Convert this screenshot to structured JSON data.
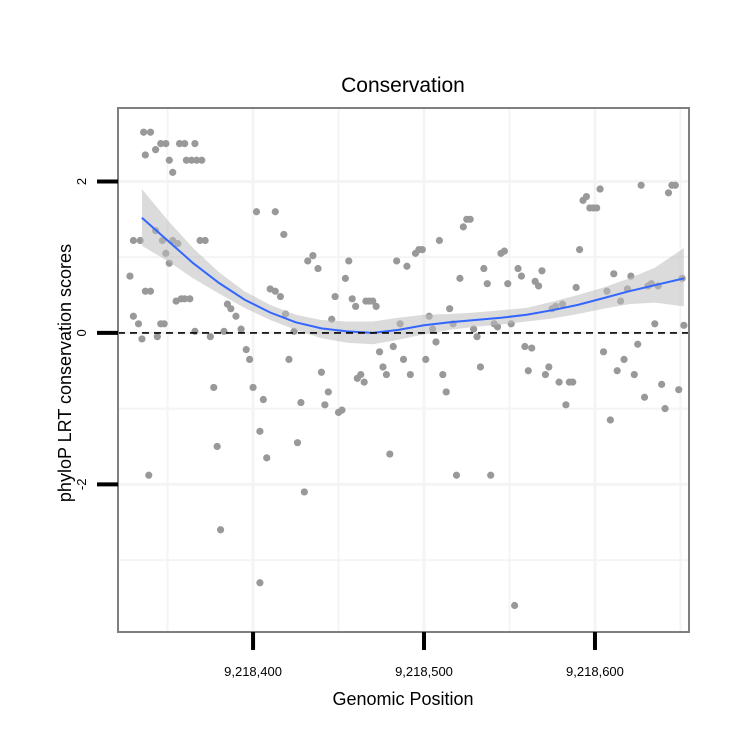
{
  "chart_data": {
    "type": "scatter",
    "title": "Conservation",
    "xlabel": "Genomic Position",
    "ylabel": "phyloP LRT conservation scores",
    "xlim": [
      9218321,
      9218655
    ],
    "ylim": [
      -3.95,
      2.97
    ],
    "x_ticks": [
      {
        "value": 9218400,
        "label": "9,218,400"
      },
      {
        "value": 9218500,
        "label": "9,218,500"
      },
      {
        "value": 9218600,
        "label": "9,218,600"
      }
    ],
    "y_ticks": [
      {
        "value": 2,
        "label": "2"
      },
      {
        "value": 0,
        "label": "0"
      },
      {
        "value": -2,
        "label": "-2"
      }
    ],
    "x_minor_grid": [
      9218350,
      9218450,
      9218550,
      9218650
    ],
    "y_minor_grid": [
      1,
      -1,
      -3
    ],
    "reference_line": {
      "y": 0,
      "style": "dashed",
      "color": "#000000"
    },
    "colors": {
      "points": "#999999",
      "smooth": "#3366ff",
      "ribbon": "#bdbdbd",
      "panel_border": "#7f7f7f",
      "grid": "#f4f4f4"
    },
    "series": [
      {
        "name": "scores",
        "points": [
          [
            9218336,
            2.65
          ],
          [
            9218340,
            2.65
          ],
          [
            9218337,
            2.35
          ],
          [
            9218343,
            2.42
          ],
          [
            9218346,
            2.5
          ],
          [
            9218349,
            2.5
          ],
          [
            9218351,
            2.28
          ],
          [
            9218353,
            2.12
          ],
          [
            9218357,
            2.5
          ],
          [
            9218360,
            2.5
          ],
          [
            9218366,
            2.5
          ],
          [
            9218361,
            2.28
          ],
          [
            9218364,
            2.28
          ],
          [
            9218367,
            2.28
          ],
          [
            9218370,
            2.28
          ],
          [
            9218328,
            0.75
          ],
          [
            9218330,
            0.22
          ],
          [
            9218333,
            0.12
          ],
          [
            9218335,
            -0.08
          ],
          [
            9218330,
            1.22
          ],
          [
            9218334,
            1.22
          ],
          [
            9218337,
            0.55
          ],
          [
            9218340,
            0.55
          ],
          [
            9218343,
            1.35
          ],
          [
            9218347,
            1.22
          ],
          [
            9218349,
            1.05
          ],
          [
            9218351,
            0.92
          ],
          [
            9218355,
            0.42
          ],
          [
            9218346,
            0.12
          ],
          [
            9218348,
            0.12
          ],
          [
            9218344,
            -0.05
          ],
          [
            9218339,
            -1.88
          ],
          [
            9218356,
            1.18
          ],
          [
            9218358,
            0.45
          ],
          [
            9218360,
            0.45
          ],
          [
            9218363,
            0.45
          ],
          [
            9218353,
            1.22
          ],
          [
            9218366,
            0.02
          ],
          [
            9218369,
            1.22
          ],
          [
            9218372,
            1.22
          ],
          [
            9218375,
            -0.05
          ],
          [
            9218377,
            -0.72
          ],
          [
            9218379,
            -1.5
          ],
          [
            9218381,
            -2.6
          ],
          [
            9218383,
            0.02
          ],
          [
            9218385,
            0.38
          ],
          [
            9218387,
            0.32
          ],
          [
            9218390,
            0.22
          ],
          [
            9218393,
            0.05
          ],
          [
            9218396,
            -0.22
          ],
          [
            9218398,
            -0.35
          ],
          [
            9218400,
            -0.72
          ],
          [
            9218402,
            1.6
          ],
          [
            9218406,
            -0.88
          ],
          [
            9218404,
            -1.3
          ],
          [
            9218408,
            -1.65
          ],
          [
            9218404,
            -3.3
          ],
          [
            9218410,
            0.58
          ],
          [
            9218413,
            0.55
          ],
          [
            9218416,
            0.48
          ],
          [
            9218413,
            1.6
          ],
          [
            9218419,
            0.25
          ],
          [
            9218421,
            -0.35
          ],
          [
            9218418,
            1.3
          ],
          [
            9218424,
            0.02
          ],
          [
            9218426,
            -1.45
          ],
          [
            9218428,
            -0.92
          ],
          [
            9218430,
            -2.1
          ],
          [
            9218432,
            0.95
          ],
          [
            9218435,
            1.02
          ],
          [
            9218438,
            0.85
          ],
          [
            9218440,
            -0.52
          ],
          [
            9218442,
            -0.95
          ],
          [
            9218444,
            -0.78
          ],
          [
            9218446,
            0.18
          ],
          [
            9218448,
            0.48
          ],
          [
            9218450,
            -1.05
          ],
          [
            9218452,
            -1.02
          ],
          [
            9218454,
            0.72
          ],
          [
            9218456,
            0.95
          ],
          [
            9218458,
            0.45
          ],
          [
            9218460,
            0.35
          ],
          [
            9218461,
            -0.6
          ],
          [
            9218463,
            -0.55
          ],
          [
            9218465,
            -0.65
          ],
          [
            9218466,
            0.42
          ],
          [
            9218468,
            0.42
          ],
          [
            9218470,
            0.42
          ],
          [
            9218472,
            0.35
          ],
          [
            9218474,
            -0.25
          ],
          [
            9218476,
            -0.45
          ],
          [
            9218478,
            -0.55
          ],
          [
            9218480,
            -1.6
          ],
          [
            9218482,
            -0.18
          ],
          [
            9218484,
            0.95
          ],
          [
            9218486,
            0.12
          ],
          [
            9218488,
            -0.35
          ],
          [
            9218490,
            0.88
          ],
          [
            9218492,
            -0.55
          ],
          [
            9218495,
            1.05
          ],
          [
            9218497,
            1.1
          ],
          [
            9218499,
            1.1
          ],
          [
            9218501,
            -0.35
          ],
          [
            9218503,
            0.22
          ],
          [
            9218505,
            0.05
          ],
          [
            9218507,
            -0.12
          ],
          [
            9218509,
            1.22
          ],
          [
            9218511,
            -0.55
          ],
          [
            9218513,
            -0.78
          ],
          [
            9218515,
            0.32
          ],
          [
            9218517,
            0.12
          ],
          [
            9218519,
            -1.88
          ],
          [
            9218521,
            0.72
          ],
          [
            9218523,
            1.4
          ],
          [
            9218525,
            1.5
          ],
          [
            9218527,
            1.5
          ],
          [
            9218529,
            0.05
          ],
          [
            9218531,
            -0.05
          ],
          [
            9218533,
            -0.45
          ],
          [
            9218535,
            0.85
          ],
          [
            9218537,
            0.65
          ],
          [
            9218539,
            -1.88
          ],
          [
            9218541,
            0.12
          ],
          [
            9218543,
            0.08
          ],
          [
            9218545,
            1.05
          ],
          [
            9218547,
            1.08
          ],
          [
            9218549,
            0.65
          ],
          [
            9218551,
            0.12
          ],
          [
            9218553,
            -3.6
          ],
          [
            9218555,
            0.85
          ],
          [
            9218557,
            0.75
          ],
          [
            9218559,
            -0.18
          ],
          [
            9218561,
            -0.5
          ],
          [
            9218563,
            -0.2
          ],
          [
            9218565,
            0.68
          ],
          [
            9218567,
            0.62
          ],
          [
            9218569,
            0.82
          ],
          [
            9218571,
            -0.55
          ],
          [
            9218573,
            -0.45
          ],
          [
            9218575,
            0.32
          ],
          [
            9218577,
            0.35
          ],
          [
            9218579,
            -0.65
          ],
          [
            9218581,
            0.38
          ],
          [
            9218583,
            -0.95
          ],
          [
            9218585,
            -0.65
          ],
          [
            9218587,
            -0.65
          ],
          [
            9218589,
            0.6
          ],
          [
            9218591,
            1.1
          ],
          [
            9218593,
            1.75
          ],
          [
            9218595,
            1.8
          ],
          [
            9218597,
            1.65
          ],
          [
            9218599,
            1.65
          ],
          [
            9218601,
            1.65
          ],
          [
            9218603,
            1.9
          ],
          [
            9218605,
            -0.25
          ],
          [
            9218607,
            0.55
          ],
          [
            9218609,
            -1.15
          ],
          [
            9218611,
            0.78
          ],
          [
            9218613,
            -0.5
          ],
          [
            9218615,
            0.42
          ],
          [
            9218617,
            -0.35
          ],
          [
            9218619,
            0.58
          ],
          [
            9218621,
            0.75
          ],
          [
            9218623,
            -0.55
          ],
          [
            9218625,
            -0.15
          ],
          [
            9218627,
            1.95
          ],
          [
            9218629,
            -0.85
          ],
          [
            9218631,
            0.62
          ],
          [
            9218633,
            0.65
          ],
          [
            9218635,
            0.12
          ],
          [
            9218637,
            0.62
          ],
          [
            9218639,
            -0.68
          ],
          [
            9218641,
            -1.0
          ],
          [
            9218643,
            1.85
          ],
          [
            9218645,
            1.95
          ],
          [
            9218647,
            1.95
          ],
          [
            9218649,
            -0.75
          ],
          [
            9218651,
            0.72
          ],
          [
            9218652,
            0.1
          ]
        ]
      },
      {
        "name": "smooth",
        "line": [
          [
            9218335,
            1.52
          ],
          [
            9218350,
            1.22
          ],
          [
            9218365,
            0.92
          ],
          [
            9218380,
            0.66
          ],
          [
            9218395,
            0.44
          ],
          [
            9218410,
            0.27
          ],
          [
            9218425,
            0.14
          ],
          [
            9218440,
            0.06
          ],
          [
            9218455,
            0.02
          ],
          [
            9218470,
            0.0
          ],
          [
            9218485,
            0.04
          ],
          [
            9218500,
            0.1
          ],
          [
            9218515,
            0.14
          ],
          [
            9218530,
            0.17
          ],
          [
            9218545,
            0.2
          ],
          [
            9218560,
            0.24
          ],
          [
            9218575,
            0.3
          ],
          [
            9218590,
            0.37
          ],
          [
            9218605,
            0.46
          ],
          [
            9218620,
            0.55
          ],
          [
            9218635,
            0.63
          ],
          [
            9218652,
            0.72
          ]
        ],
        "band_lower": [
          [
            9218335,
            1.15
          ],
          [
            9218350,
            0.95
          ],
          [
            9218365,
            0.72
          ],
          [
            9218380,
            0.52
          ],
          [
            9218395,
            0.33
          ],
          [
            9218410,
            0.17
          ],
          [
            9218425,
            0.04
          ],
          [
            9218440,
            -0.07
          ],
          [
            9218455,
            -0.13
          ],
          [
            9218470,
            -0.15
          ],
          [
            9218485,
            -0.09
          ],
          [
            9218500,
            -0.02
          ],
          [
            9218515,
            0.04
          ],
          [
            9218530,
            0.08
          ],
          [
            9218545,
            0.11
          ],
          [
            9218560,
            0.15
          ],
          [
            9218575,
            0.19
          ],
          [
            9218590,
            0.25
          ],
          [
            9218605,
            0.32
          ],
          [
            9218620,
            0.38
          ],
          [
            9218635,
            0.4
          ],
          [
            9218652,
            0.35
          ]
        ],
        "band_upper": [
          [
            9218335,
            1.9
          ],
          [
            9218350,
            1.49
          ],
          [
            9218365,
            1.12
          ],
          [
            9218380,
            0.8
          ],
          [
            9218395,
            0.55
          ],
          [
            9218410,
            0.37
          ],
          [
            9218425,
            0.24
          ],
          [
            9218440,
            0.17
          ],
          [
            9218455,
            0.15
          ],
          [
            9218470,
            0.15
          ],
          [
            9218485,
            0.2
          ],
          [
            9218500,
            0.24
          ],
          [
            9218515,
            0.25
          ],
          [
            9218530,
            0.27
          ],
          [
            9218545,
            0.3
          ],
          [
            9218560,
            0.33
          ],
          [
            9218575,
            0.41
          ],
          [
            9218590,
            0.5
          ],
          [
            9218605,
            0.6
          ],
          [
            9218620,
            0.72
          ],
          [
            9218635,
            0.86
          ],
          [
            9218652,
            1.12
          ]
        ]
      }
    ]
  }
}
